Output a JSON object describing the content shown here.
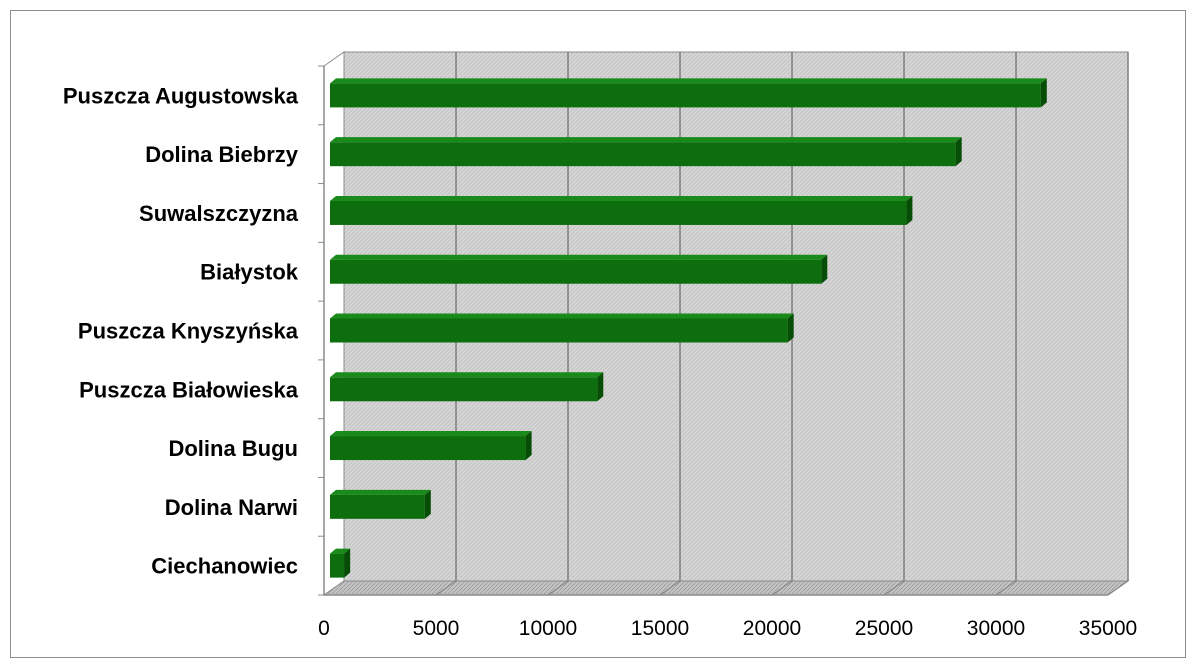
{
  "chart_data": {
    "type": "bar",
    "orientation": "horizontal",
    "style": "3d",
    "categories": [
      "Puszcza Augustowska",
      "Dolina Biebrzy",
      "Suwalszczyzna",
      "Białystok",
      "Puszcza Knyszyńska",
      "Puszcza Białowieska",
      "Dolina Bugu",
      "Dolina Narwi",
      "Ciechanowiec"
    ],
    "values": [
      32000,
      28200,
      26000,
      22200,
      20700,
      12200,
      9000,
      4500,
      900
    ],
    "xlim": [
      0,
      35000
    ],
    "x_ticks": [
      "0",
      "5000",
      "10000",
      "15000",
      "20000",
      "25000",
      "30000",
      "35000"
    ],
    "title": "",
    "xlabel": "",
    "ylabel": "",
    "grid": true,
    "legend": "none",
    "colors": {
      "bar": "#0c6e0c",
      "bar_top": "#1a8a1a",
      "bar_side": "#064d06",
      "plot_background": "#d4d4d4",
      "gridline": "#7f7f7f"
    }
  }
}
